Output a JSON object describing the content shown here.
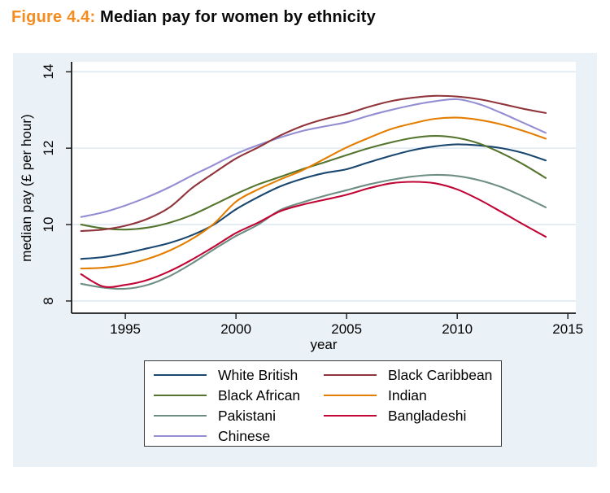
{
  "figure": {
    "label": "Figure 4.4:",
    "title": " Median pay for women by ethnicity"
  },
  "colors": {
    "accent_orange": "#F68B1E",
    "graph_background": "#EAF1F7",
    "plot_background": "#FFFFFF",
    "gridline": "#DEE9F2",
    "axis": "#1A1A1A",
    "legend_border": "#3A3A3A"
  },
  "chart_data": {
    "type": "line",
    "title": "",
    "xlabel": "year",
    "ylabel": "median pay (£ per hour)",
    "xlim": [
      1992.57,
      2015.36
    ],
    "ylim": [
      7.68,
      14.26
    ],
    "xticks": [
      1995,
      2000,
      2005,
      2010,
      2015
    ],
    "yticks": [
      8,
      10,
      12,
      14
    ],
    "grid": "horizontal-only",
    "legend_position": "below-plot",
    "x": [
      1993,
      1994,
      1995,
      1996,
      1997,
      1998,
      1999,
      2000,
      2001,
      2002,
      2003,
      2004,
      2005,
      2006,
      2007,
      2008,
      2009,
      2010,
      2011,
      2012,
      2013,
      2014
    ],
    "series": [
      {
        "name": "White British",
        "color": "#1A476F",
        "values": [
          9.1,
          9.15,
          9.25,
          9.38,
          9.52,
          9.72,
          10.0,
          10.4,
          10.72,
          11.0,
          11.2,
          11.35,
          11.45,
          11.63,
          11.8,
          11.95,
          12.05,
          12.1,
          12.07,
          12.0,
          11.87,
          11.68
        ]
      },
      {
        "name": "Black African",
        "color": "#55752F",
        "values": [
          10.0,
          9.9,
          9.87,
          9.92,
          10.05,
          10.25,
          10.52,
          10.8,
          11.05,
          11.25,
          11.45,
          11.63,
          11.82,
          12.0,
          12.15,
          12.27,
          12.32,
          12.27,
          12.12,
          11.87,
          11.57,
          11.22
        ]
      },
      {
        "name": "Pakistani",
        "color": "#6E8E84",
        "values": [
          8.45,
          8.35,
          8.32,
          8.42,
          8.65,
          8.98,
          9.35,
          9.7,
          10.0,
          10.38,
          10.58,
          10.75,
          10.9,
          11.05,
          11.17,
          11.26,
          11.3,
          11.27,
          11.16,
          10.98,
          10.73,
          10.45
        ]
      },
      {
        "name": "Chinese",
        "color": "#938DD2",
        "values": [
          10.2,
          10.32,
          10.5,
          10.72,
          10.98,
          11.28,
          11.56,
          11.85,
          12.08,
          12.28,
          12.45,
          12.57,
          12.68,
          12.85,
          13.0,
          13.13,
          13.23,
          13.28,
          13.15,
          12.92,
          12.66,
          12.4
        ]
      },
      {
        "name": "Black Caribbean",
        "color": "#90353B",
        "values": [
          9.83,
          9.87,
          9.97,
          10.15,
          10.45,
          10.95,
          11.35,
          11.73,
          12.02,
          12.33,
          12.58,
          12.76,
          12.9,
          13.08,
          13.23,
          13.32,
          13.37,
          13.35,
          13.28,
          13.16,
          13.03,
          12.92
        ]
      },
      {
        "name": "Indian",
        "color": "#E37E00",
        "values": [
          8.85,
          8.87,
          8.95,
          9.1,
          9.32,
          9.62,
          10.02,
          10.6,
          10.92,
          11.18,
          11.42,
          11.72,
          12.02,
          12.27,
          12.5,
          12.65,
          12.77,
          12.8,
          12.74,
          12.62,
          12.45,
          12.25
        ]
      },
      {
        "name": "Bangladeshi",
        "color": "#C10534",
        "values": [
          8.7,
          8.38,
          8.42,
          8.55,
          8.78,
          9.08,
          9.42,
          9.78,
          10.05,
          10.35,
          10.52,
          10.65,
          10.78,
          10.95,
          11.08,
          11.12,
          11.08,
          10.92,
          10.65,
          10.33,
          10.0,
          9.68
        ]
      }
    ],
    "legend_columns": [
      [
        "White British",
        "Black African",
        "Pakistani",
        "Chinese"
      ],
      [
        "Black Caribbean",
        "Indian",
        "Bangladeshi"
      ]
    ]
  }
}
